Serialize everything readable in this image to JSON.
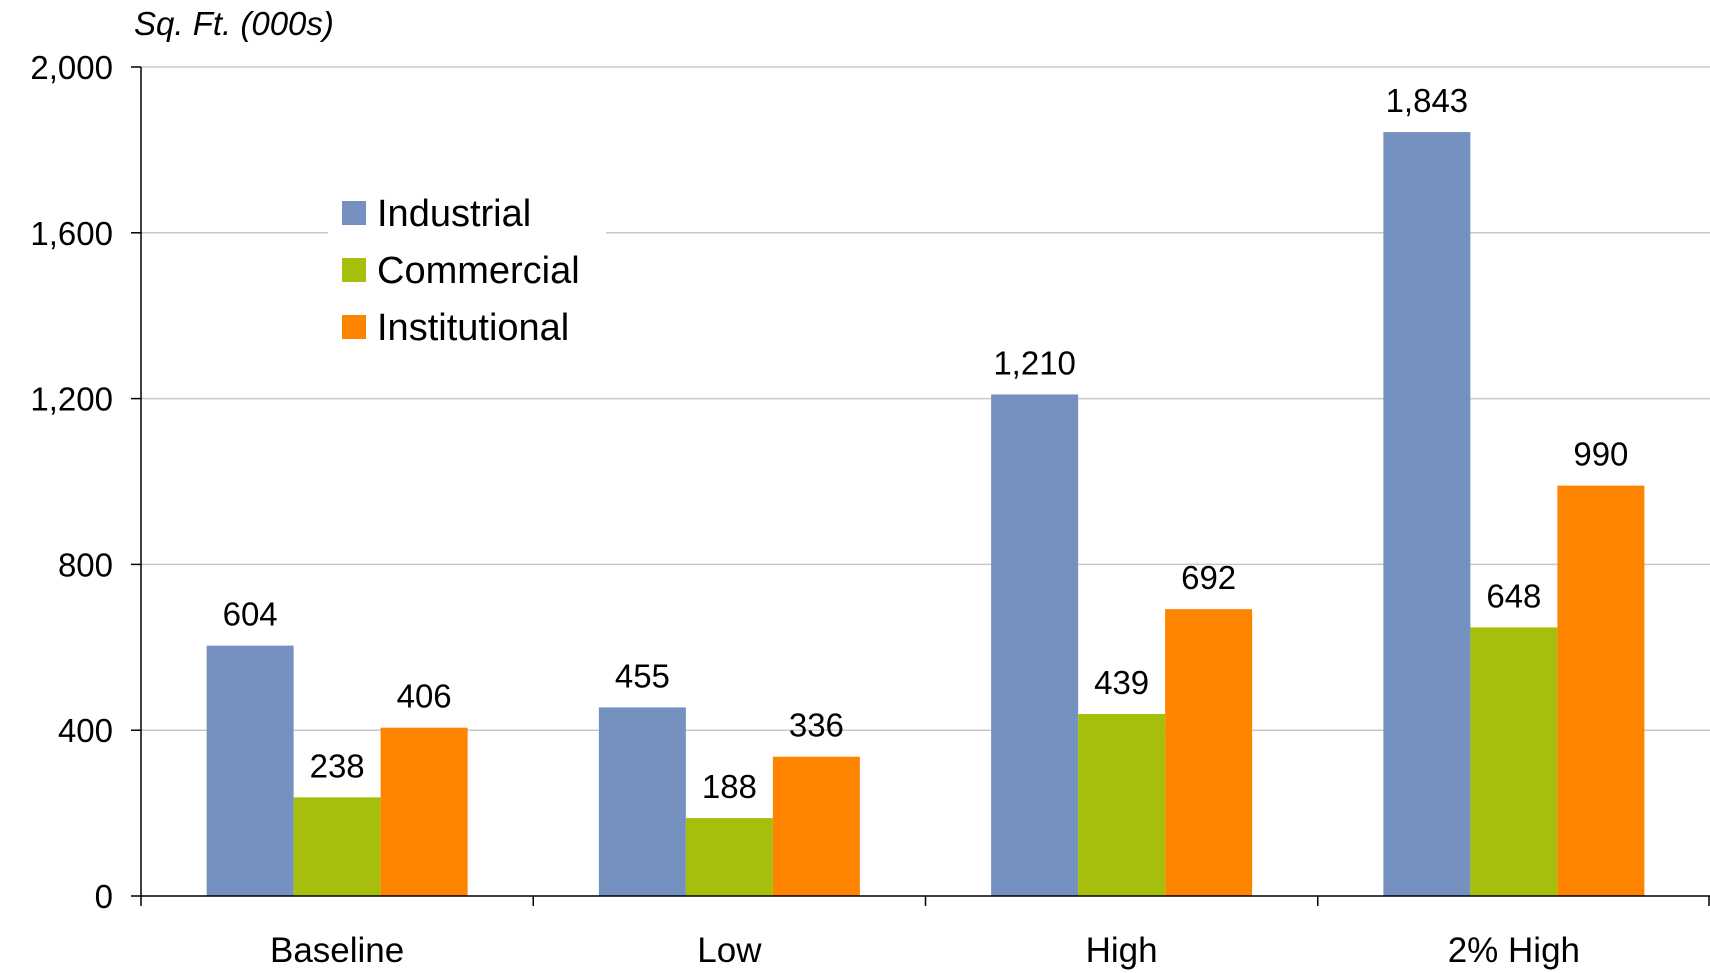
{
  "chart_data": {
    "type": "bar",
    "title": "",
    "ylabel": "Sq. Ft. (000s)",
    "xlabel": "",
    "ylim": [
      0,
      2000
    ],
    "yticks": [
      0,
      400,
      800,
      1200,
      1600,
      2000
    ],
    "ytick_labels": [
      "0",
      "400",
      "800",
      "1,200",
      "1,600",
      "2,000"
    ],
    "grid": true,
    "legend_position": "top-left",
    "categories": [
      "Baseline",
      "Low",
      "High",
      "2% High"
    ],
    "series": [
      {
        "name": "Industrial",
        "color": "#7591bf",
        "values": [
          604,
          455,
          1210,
          1843
        ],
        "labels": [
          "604",
          "455",
          "1,210",
          "1,843"
        ]
      },
      {
        "name": "Commercial",
        "color": "#a5bf0c",
        "values": [
          238,
          188,
          439,
          648
        ],
        "labels": [
          "238",
          "188",
          "439",
          "648"
        ]
      },
      {
        "name": "Institutional",
        "color": "#fe8400",
        "values": [
          406,
          336,
          692,
          990
        ],
        "labels": [
          "406",
          "336",
          "692",
          "990"
        ]
      }
    ]
  }
}
